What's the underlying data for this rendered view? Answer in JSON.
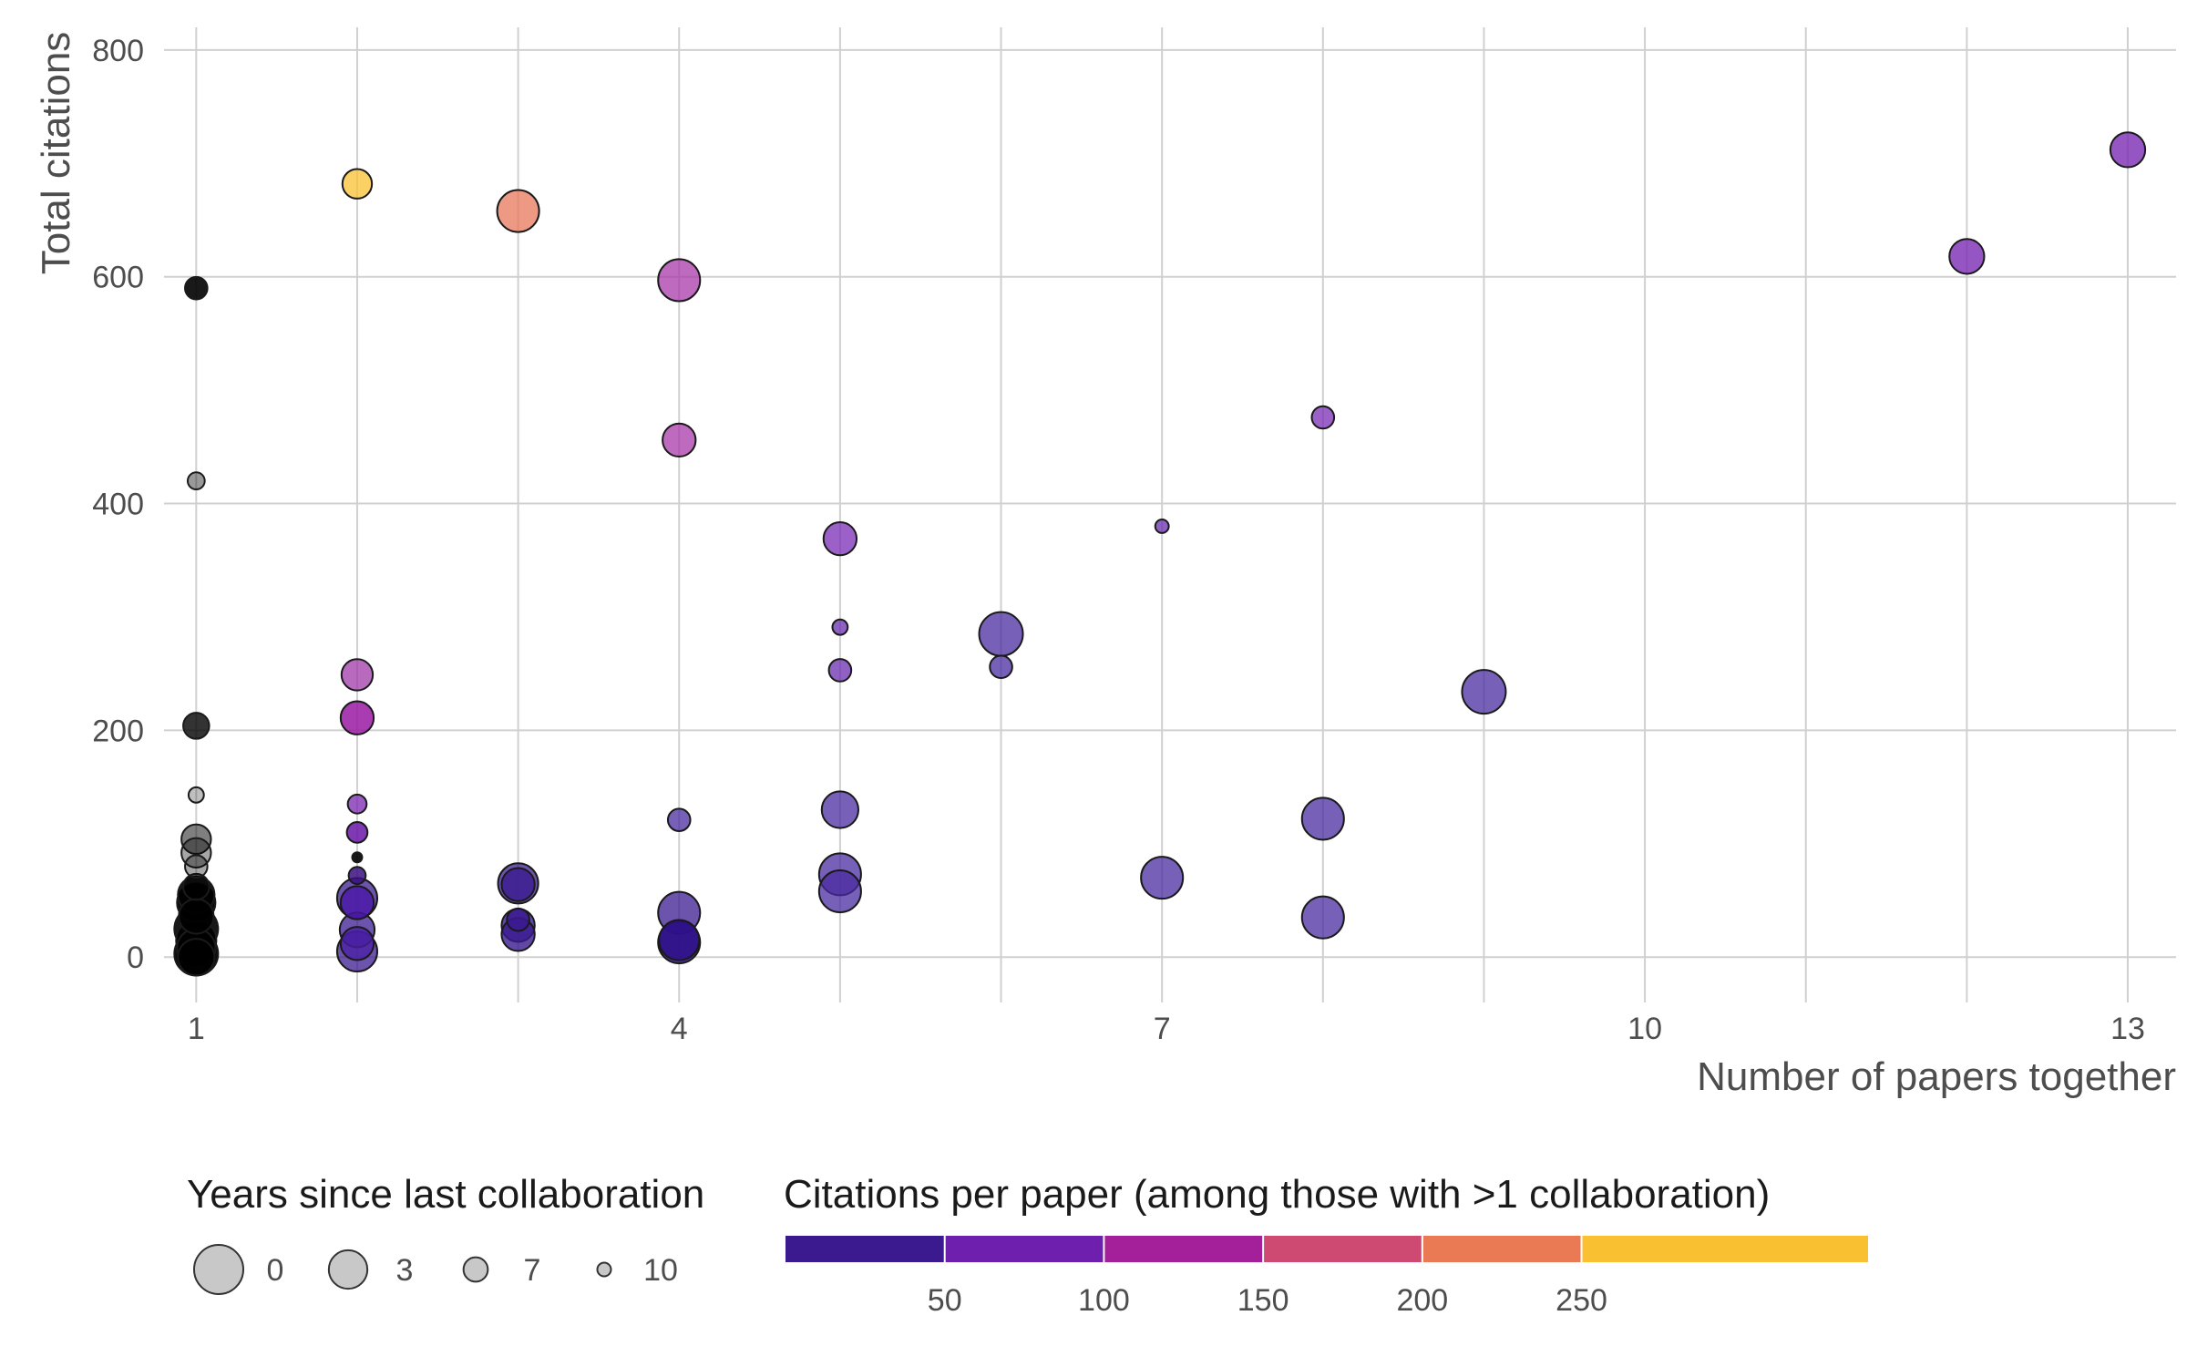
{
  "chart_data": {
    "type": "scatter",
    "xlabel": "Number of papers together",
    "ylabel": "Total citations",
    "xlim": [
      0.8,
      13.3
    ],
    "ylim": [
      -40,
      820
    ],
    "x_ticks": [
      1,
      4,
      7,
      10,
      13
    ],
    "x_tick_labels": [
      "1",
      "4",
      "7",
      "10",
      "13"
    ],
    "x_minor_gridlines": [
      2,
      3,
      5,
      6,
      8,
      9,
      11,
      12
    ],
    "y_ticks": [
      0,
      200,
      400,
      600,
      800
    ],
    "y_tick_labels": [
      "0",
      "200",
      "400",
      "600",
      "800"
    ],
    "grid": true,
    "point_stroke_color": "#1a1a1a",
    "single_collaboration_color": "#000000",
    "size_legend": {
      "title": "Years since last collaboration",
      "entries": [
        {
          "label": "0",
          "years": 0
        },
        {
          "label": "3",
          "years": 3
        },
        {
          "label": "7",
          "years": 7
        },
        {
          "label": "10",
          "years": 10
        }
      ]
    },
    "color_legend": {
      "title": "Citations per paper (among those with >1 collaboration)",
      "range": [
        0,
        340
      ],
      "breaks": [
        50,
        100,
        150,
        200,
        250
      ],
      "break_labels": [
        "50",
        "100",
        "150",
        "200",
        "250"
      ],
      "segments": [
        {
          "from": 0,
          "to": 50,
          "color": "#3b1a8f"
        },
        {
          "from": 50,
          "to": 100,
          "color": "#6e1fad"
        },
        {
          "from": 100,
          "to": 150,
          "color": "#a3209a"
        },
        {
          "from": 150,
          "to": 200,
          "color": "#cf4a73"
        },
        {
          "from": 200,
          "to": 250,
          "color": "#ea7a53"
        },
        {
          "from": 250,
          "to": 340,
          "color": "#f9c132"
        }
      ]
    },
    "points": [
      {
        "x": 1,
        "y": 590,
        "years": 6,
        "color": "#000000",
        "opacity": 0.9
      },
      {
        "x": 1,
        "y": 420,
        "years": 7.5,
        "color": "#000000",
        "opacity": 0.4
      },
      {
        "x": 1,
        "y": 204,
        "years": 5,
        "color": "#000000",
        "opacity": 0.8
      },
      {
        "x": 1,
        "y": 143,
        "years": 8,
        "color": "#000000",
        "opacity": 0.25
      },
      {
        "x": 1,
        "y": 104,
        "years": 4,
        "color": "#000000",
        "opacity": 0.5
      },
      {
        "x": 1,
        "y": 92,
        "years": 4,
        "color": "#000000",
        "opacity": 0.35
      },
      {
        "x": 1,
        "y": 80,
        "years": 6,
        "color": "#000000",
        "opacity": 0.35
      },
      {
        "x": 1,
        "y": 62,
        "years": 5,
        "color": "#000000",
        "opacity": 0.5
      },
      {
        "x": 1,
        "y": 55,
        "years": 2,
        "color": "#000000",
        "opacity": 0.9
      },
      {
        "x": 1,
        "y": 48,
        "years": 1.5,
        "color": "#000000",
        "opacity": 0.95
      },
      {
        "x": 1,
        "y": 36,
        "years": 2.5,
        "color": "#000000",
        "opacity": 0.9
      },
      {
        "x": 1,
        "y": 25,
        "years": 0,
        "color": "#000000",
        "opacity": 0.9
      },
      {
        "x": 1,
        "y": 15,
        "years": 1,
        "color": "#000000",
        "opacity": 0.9
      },
      {
        "x": 1,
        "y": 8,
        "years": 1.5,
        "color": "#000000",
        "opacity": 0.9
      },
      {
        "x": 1,
        "y": 3,
        "years": 0,
        "color": "#000000",
        "opacity": 0.95
      },
      {
        "x": 1,
        "y": 0,
        "years": 2,
        "color": "#000000",
        "opacity": 0.9
      },
      {
        "x": 2,
        "y": 682,
        "years": 4,
        "color": "#f9c132",
        "opacity": 0.75
      },
      {
        "x": 2,
        "y": 249,
        "years": 3.5,
        "color": "#a03aa8",
        "opacity": 0.75
      },
      {
        "x": 2,
        "y": 211,
        "years": 3,
        "color": "#9b1aa5",
        "opacity": 0.85
      },
      {
        "x": 2,
        "y": 135,
        "years": 7,
        "color": "#7a24b0",
        "opacity": 0.75
      },
      {
        "x": 2,
        "y": 110,
        "years": 6.5,
        "color": "#6a16a8",
        "opacity": 0.85
      },
      {
        "x": 2,
        "y": 88,
        "years": 9.5,
        "color": "#000000",
        "opacity": 0.9
      },
      {
        "x": 2,
        "y": 72,
        "years": 7.5,
        "color": "#3a1080",
        "opacity": 0.85
      },
      {
        "x": 2,
        "y": 52,
        "years": 1,
        "color": "#3b1a8f",
        "opacity": 0.75
      },
      {
        "x": 2,
        "y": 48,
        "years": 3,
        "color": "#4a16a8",
        "opacity": 0.8
      },
      {
        "x": 2,
        "y": 24,
        "years": 2.5,
        "color": "#3b1a8f",
        "opacity": 0.75
      },
      {
        "x": 2,
        "y": 12,
        "years": 3,
        "color": "#4a1fa5",
        "opacity": 0.75
      },
      {
        "x": 2,
        "y": 5,
        "years": 1,
        "color": "#3b1a8f",
        "opacity": 0.75
      },
      {
        "x": 3,
        "y": 658,
        "years": 0.5,
        "color": "#e8775a",
        "opacity": 0.75
      },
      {
        "x": 3,
        "y": 65,
        "years": 1,
        "color": "#3b1a8f",
        "opacity": 0.75
      },
      {
        "x": 3,
        "y": 64,
        "years": 3,
        "color": "#3b1a8f",
        "opacity": 0.8
      },
      {
        "x": 3,
        "y": 33,
        "years": 6,
        "color": "#3b1a8f",
        "opacity": 0.85
      },
      {
        "x": 3,
        "y": 28,
        "years": 3,
        "color": "#3b1a8f",
        "opacity": 0.8
      },
      {
        "x": 3,
        "y": 20,
        "years": 3,
        "color": "#3b1a8f",
        "opacity": 0.8
      },
      {
        "x": 4,
        "y": 597,
        "years": 0.5,
        "color": "#a83aaa",
        "opacity": 0.75
      },
      {
        "x": 4,
        "y": 456,
        "years": 3,
        "color": "#a83aaa",
        "opacity": 0.75
      },
      {
        "x": 4,
        "y": 121,
        "years": 6,
        "color": "#4a2ba0",
        "opacity": 0.75
      },
      {
        "x": 4,
        "y": 39,
        "years": 0.5,
        "color": "#3b1a8f",
        "opacity": 0.75
      },
      {
        "x": 4,
        "y": 15,
        "years": 1,
        "color": "#2e1088",
        "opacity": 0.85
      },
      {
        "x": 4,
        "y": 13,
        "years": 0.5,
        "color": "#2e1088",
        "opacity": 0.85
      },
      {
        "x": 5,
        "y": 369,
        "years": 3,
        "color": "#7a2cb5",
        "opacity": 0.75
      },
      {
        "x": 5,
        "y": 291,
        "years": 8,
        "color": "#6a2cb0",
        "opacity": 0.75
      },
      {
        "x": 5,
        "y": 253,
        "years": 6,
        "color": "#6a2cb0",
        "opacity": 0.75
      },
      {
        "x": 5,
        "y": 130,
        "years": 2,
        "color": "#4a2ba0",
        "opacity": 0.75
      },
      {
        "x": 5,
        "y": 73,
        "years": 0.5,
        "color": "#4a2ba0",
        "opacity": 0.75
      },
      {
        "x": 5,
        "y": 58,
        "years": 0.5,
        "color": "#4a2ba0",
        "opacity": 0.75
      },
      {
        "x": 6,
        "y": 285,
        "years": 0,
        "color": "#4a2ba0",
        "opacity": 0.75
      },
      {
        "x": 6,
        "y": 256,
        "years": 6,
        "color": "#4a2ba0",
        "opacity": 0.75
      },
      {
        "x": 7,
        "y": 380,
        "years": 8.5,
        "color": "#6a2cb0",
        "opacity": 0.75
      },
      {
        "x": 7,
        "y": 70,
        "years": 0.5,
        "color": "#4a2ba0",
        "opacity": 0.75
      },
      {
        "x": 8,
        "y": 476,
        "years": 6,
        "color": "#7a2cb5",
        "opacity": 0.75
      },
      {
        "x": 8,
        "y": 122,
        "years": 0.5,
        "color": "#4a2ba0",
        "opacity": 0.75
      },
      {
        "x": 8,
        "y": 35,
        "years": 0.5,
        "color": "#4a2ba0",
        "opacity": 0.75
      },
      {
        "x": 9,
        "y": 234,
        "years": 0,
        "color": "#4a2ba0",
        "opacity": 0.75
      },
      {
        "x": 12,
        "y": 618,
        "years": 2.5,
        "color": "#7a2cb5",
        "opacity": 0.8
      },
      {
        "x": 13,
        "y": 712,
        "years": 2.5,
        "color": "#7a2cb5",
        "opacity": 0.8
      }
    ]
  }
}
